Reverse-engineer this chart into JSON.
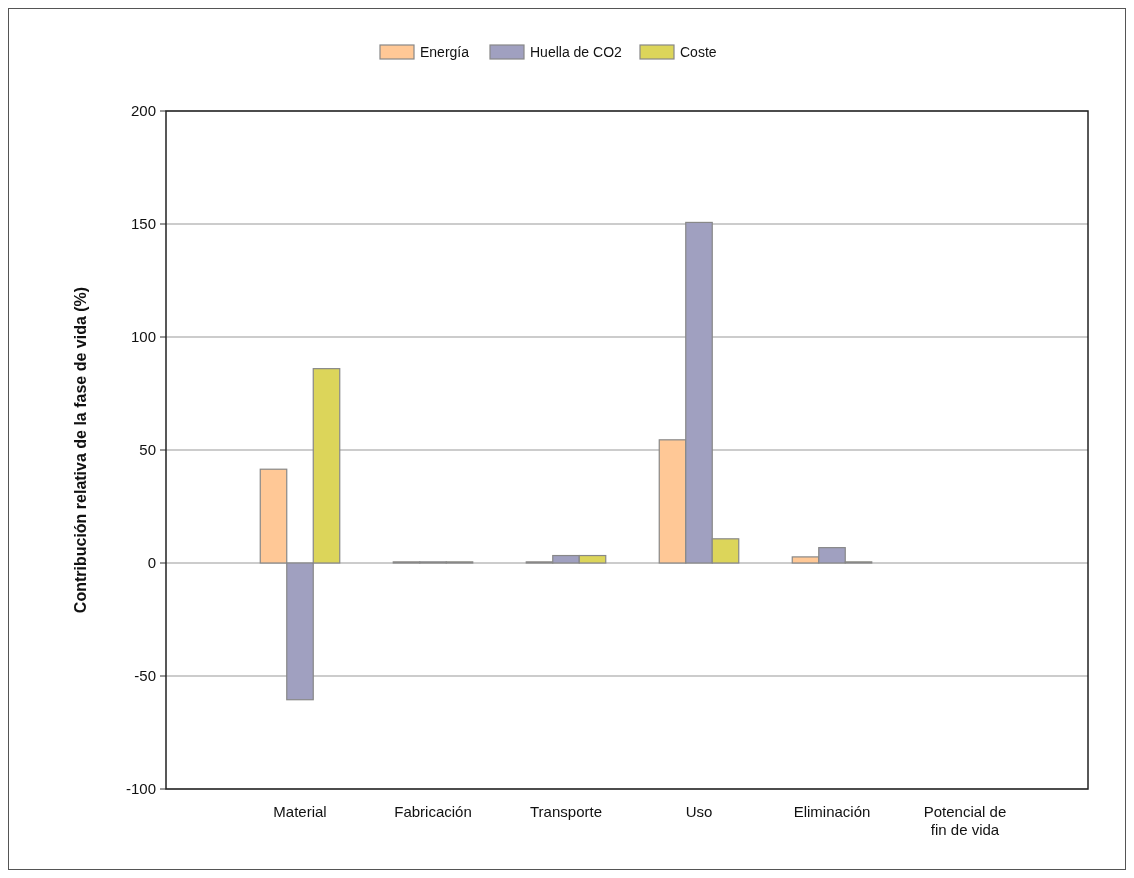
{
  "chart_data": {
    "type": "bar",
    "ylabel": "Contribución relativa de la fase de vida (%)",
    "categories": [
      "Material",
      "Fabricación",
      "Transporte",
      "Uso",
      "Eliminación",
      "Potencial de fin de vida"
    ],
    "series": [
      {
        "name": "Energía",
        "color": "#ffc896",
        "values": [
          41.5,
          0.5,
          0.5,
          54.5,
          2.7,
          0
        ]
      },
      {
        "name": "Huella de CO2",
        "color": "#a0a0c0",
        "values": [
          -60.5,
          0.5,
          3.3,
          150.7,
          6.8,
          0
        ]
      },
      {
        "name": "Coste",
        "color": "#dcd55a",
        "values": [
          86,
          0.5,
          3.3,
          10.7,
          0.5,
          0
        ]
      }
    ],
    "ylim": [
      -100,
      200
    ],
    "yticks": [
      -100,
      -50,
      0,
      50,
      100,
      150,
      200
    ],
    "grid": "y",
    "legend": "top"
  }
}
